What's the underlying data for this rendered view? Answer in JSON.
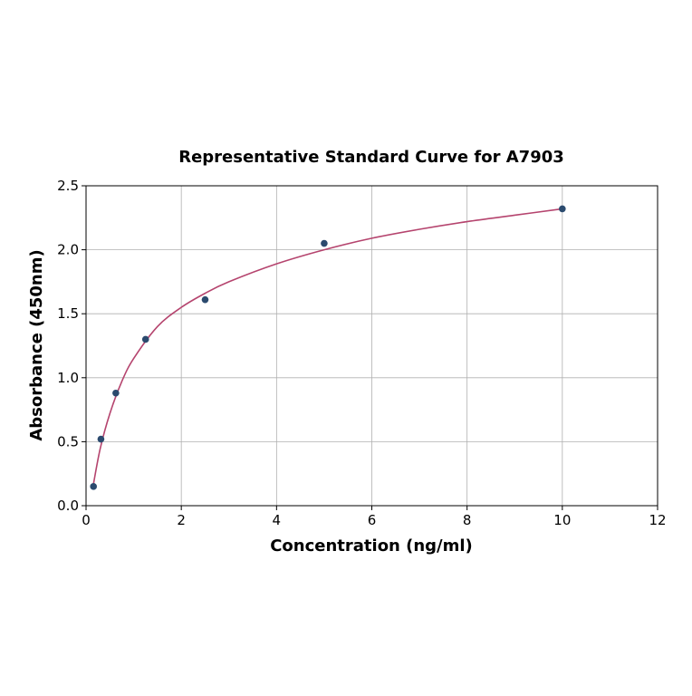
{
  "chart_data": {
    "type": "scatter",
    "title": "Representative Standard Curve for A7903",
    "xlabel": "Concentration (ng/ml)",
    "ylabel": "Absorbance (450nm)",
    "xlim": [
      0,
      12
    ],
    "ylim": [
      0,
      2.5
    ],
    "xticks": [
      "0",
      "2",
      "4",
      "6",
      "8",
      "10",
      "12"
    ],
    "yticks": [
      "0.0",
      "0.5",
      "1.0",
      "1.5",
      "2.0",
      "2.5"
    ],
    "grid": true,
    "points": {
      "x": [
        0.156,
        0.3125,
        0.625,
        1.25,
        2.5,
        5,
        10
      ],
      "y": [
        0.15,
        0.52,
        0.88,
        1.3,
        1.61,
        2.05,
        2.32
      ]
    },
    "fit_curve": {
      "x": [
        0.156,
        0.3,
        0.5,
        0.75,
        1,
        1.5,
        2,
        2.5,
        3,
        4,
        5,
        6,
        7,
        8,
        9,
        10
      ],
      "y": [
        0.17,
        0.45,
        0.72,
        0.97,
        1.15,
        1.4,
        1.55,
        1.66,
        1.75,
        1.89,
        2.0,
        2.09,
        2.16,
        2.22,
        2.27,
        2.32
      ]
    },
    "colors": {
      "points": "#2b4a6e",
      "curve": "#b5446e",
      "grid": "#b0b0b0"
    }
  }
}
